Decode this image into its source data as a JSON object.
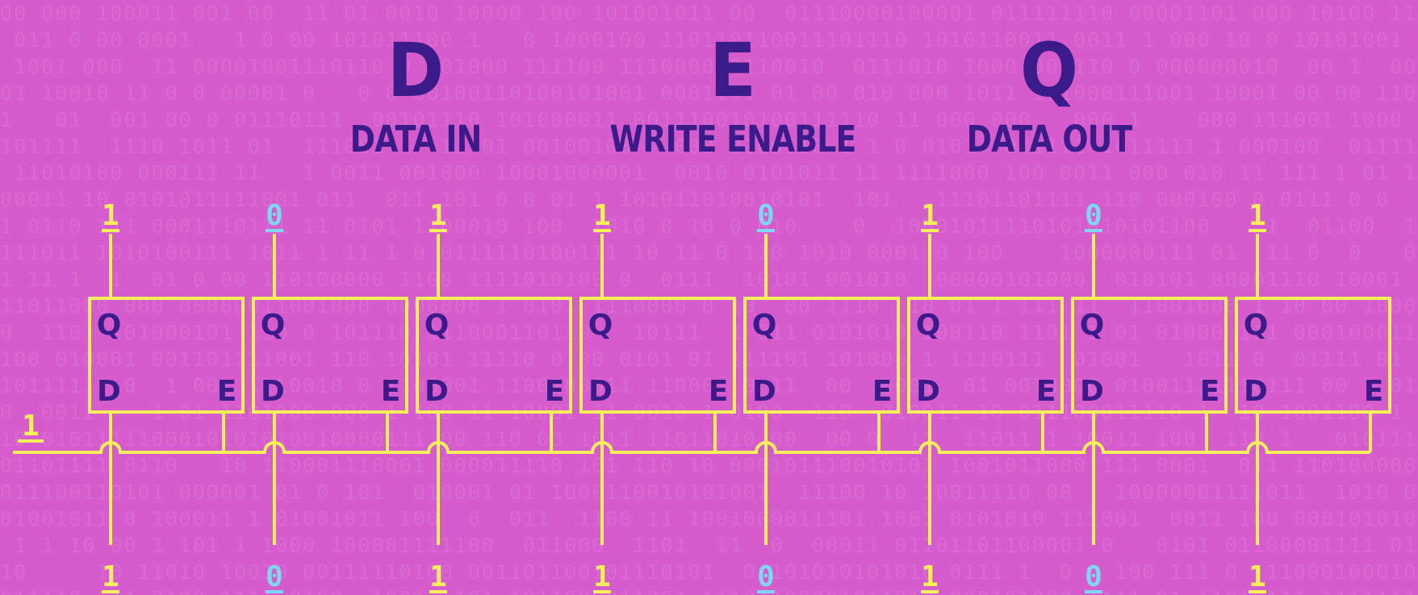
{
  "headings": [
    {
      "letter": "D",
      "label": "DATA IN"
    },
    {
      "letter": "E",
      "label": "WRITE ENABLE"
    },
    {
      "letter": "Q",
      "label": "DATA OUT"
    }
  ],
  "latch_labels": {
    "q": "Q",
    "d": "D",
    "e": "E"
  },
  "write_enable_value": "1",
  "data_out_bits": [
    "1",
    "0",
    "1",
    "1",
    "0",
    "1",
    "0",
    "1"
  ],
  "data_in_bits": [
    "1",
    "0",
    "1",
    "1",
    "0",
    "1",
    "0",
    "1"
  ],
  "colors": {
    "background": "#d65ccd",
    "wire": "#f5ef5a",
    "text_dark": "#3b1b8a",
    "bit_one": "#f5ef5a",
    "bit_zero": "#7fd6f0"
  }
}
